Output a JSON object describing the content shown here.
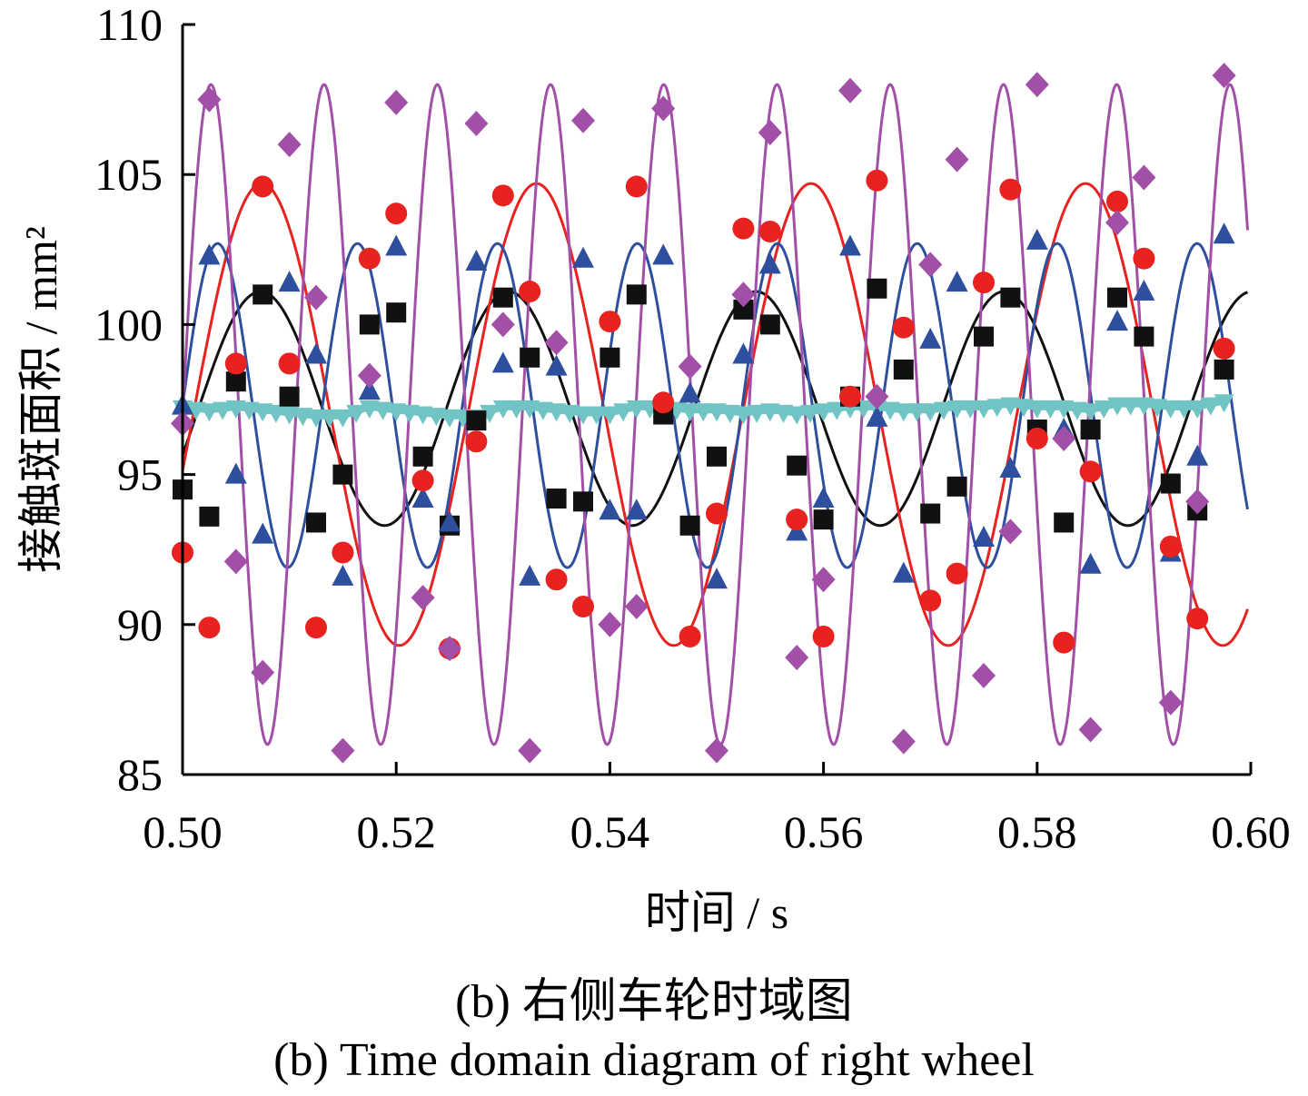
{
  "chart_data": {
    "type": "line",
    "title": "",
    "xlabel": "时间 / s",
    "ylabel": "接触斑面积 / mm²",
    "xlim": [
      0.5,
      0.6
    ],
    "ylim": [
      85,
      110
    ],
    "xticks": [
      "0.50",
      "0.52",
      "0.54",
      "0.56",
      "0.58",
      "0.60"
    ],
    "yticks": [
      "85",
      "90",
      "95",
      "100",
      "105",
      "110"
    ],
    "grid": false,
    "legend": "none",
    "series": [
      {
        "marker": "square",
        "color": "#111111",
        "mean": 97.2,
        "amplitude": 3.9,
        "period": 0.0232,
        "phase": 0.0015,
        "x": [
          0.5,
          0.5025,
          0.505,
          0.5075,
          0.51,
          0.5125,
          0.515,
          0.5175,
          0.52,
          0.5225,
          0.525,
          0.5275,
          0.53,
          0.5325,
          0.535,
          0.5375,
          0.54,
          0.5425,
          0.545,
          0.5475,
          0.55,
          0.5525,
          0.555,
          0.5575,
          0.56,
          0.5625,
          0.565,
          0.5675,
          0.57,
          0.5725,
          0.575,
          0.5775,
          0.58,
          0.5825,
          0.585,
          0.5875,
          0.59,
          0.5925,
          0.595,
          0.5975
        ],
        "y": [
          94.5,
          93.6,
          98.1,
          101.0,
          97.6,
          93.4,
          95.0,
          100.0,
          100.4,
          95.6,
          93.3,
          96.8,
          100.9,
          98.9,
          94.2,
          94.1,
          98.9,
          101.0,
          97.0,
          93.3,
          95.6,
          100.5,
          100.0,
          95.3,
          93.5,
          97.6,
          101.2,
          98.5,
          93.7,
          94.6,
          99.6,
          100.9,
          96.5,
          93.4,
          96.5,
          100.9,
          99.6,
          94.7,
          93.8,
          98.5
        ]
      },
      {
        "marker": "circle",
        "color": "#e8221f",
        "mean": 97.0,
        "amplitude": 7.7,
        "period": 0.0257,
        "phase": 0.001,
        "x": [
          0.5,
          0.5025,
          0.505,
          0.5075,
          0.51,
          0.5125,
          0.515,
          0.5175,
          0.52,
          0.5225,
          0.525,
          0.5275,
          0.53,
          0.5325,
          0.535,
          0.5375,
          0.54,
          0.5425,
          0.545,
          0.5475,
          0.55,
          0.5525,
          0.555,
          0.5575,
          0.56,
          0.5625,
          0.565,
          0.5675,
          0.57,
          0.5725,
          0.575,
          0.5775,
          0.58,
          0.5825,
          0.585,
          0.5875,
          0.59,
          0.5925,
          0.595,
          0.5975
        ],
        "y": [
          92.4,
          89.9,
          98.7,
          104.6,
          98.7,
          89.9,
          92.4,
          102.2,
          103.7,
          94.8,
          89.2,
          96.1,
          104.3,
          101.1,
          91.5,
          90.6,
          100.1,
          104.6,
          97.4,
          89.6,
          93.7,
          103.2,
          103.1,
          93.5,
          89.6,
          97.6,
          104.8,
          99.9,
          90.8,
          91.7,
          101.4,
          104.5,
          96.2,
          89.4,
          95.1,
          104.1,
          102.2,
          92.6,
          90.2,
          99.2
        ]
      },
      {
        "marker": "triangle-up",
        "color": "#2e4f9e",
        "mean": 97.3,
        "amplitude": 5.4,
        "period": 0.0131,
        "phase": 0.0,
        "x": [
          0.5,
          0.5025,
          0.505,
          0.5075,
          0.51,
          0.5125,
          0.515,
          0.5175,
          0.52,
          0.5225,
          0.525,
          0.5275,
          0.53,
          0.5325,
          0.535,
          0.5375,
          0.54,
          0.5425,
          0.545,
          0.5475,
          0.55,
          0.5525,
          0.555,
          0.5575,
          0.56,
          0.5625,
          0.565,
          0.5675,
          0.57,
          0.5725,
          0.575,
          0.5775,
          0.58,
          0.5825,
          0.585,
          0.5875,
          0.59,
          0.5925,
          0.595,
          0.5975
        ],
        "y": [
          97.3,
          102.3,
          95.0,
          93.0,
          101.4,
          99.0,
          91.6,
          97.8,
          102.6,
          94.2,
          93.4,
          102.1,
          98.7,
          91.6,
          98.6,
          102.2,
          93.8,
          93.8,
          102.3,
          97.7,
          91.5,
          99.0,
          102.0,
          93.1,
          94.2,
          102.6,
          96.9,
          91.7,
          99.5,
          101.4,
          92.9,
          95.2,
          102.8,
          96.5,
          92.0,
          100.1,
          101.1,
          92.4,
          95.6,
          103.0
        ]
      },
      {
        "marker": "diamond",
        "color": "#a24fa8",
        "mean": 97.0,
        "amplitude": 11.0,
        "period": 0.0106,
        "phase": 0.0,
        "x": [
          0.5,
          0.5025,
          0.505,
          0.5075,
          0.51,
          0.5125,
          0.515,
          0.5175,
          0.52,
          0.5225,
          0.525,
          0.5275,
          0.53,
          0.5325,
          0.535,
          0.5375,
          0.54,
          0.5425,
          0.545,
          0.5475,
          0.55,
          0.5525,
          0.555,
          0.5575,
          0.56,
          0.5625,
          0.565,
          0.5675,
          0.57,
          0.5725,
          0.575,
          0.5775,
          0.58,
          0.5825,
          0.585,
          0.5875,
          0.59,
          0.5925,
          0.595,
          0.5975
        ],
        "y": [
          96.7,
          107.5,
          92.1,
          88.4,
          106.0,
          100.9,
          85.8,
          98.3,
          107.4,
          90.9,
          89.2,
          106.7,
          100.0,
          85.8,
          99.4,
          106.8,
          90.0,
          90.6,
          107.2,
          98.6,
          85.8,
          101.0,
          106.4,
          88.9,
          91.5,
          107.8,
          97.6,
          86.1,
          102.0,
          105.5,
          88.3,
          93.1,
          108.0,
          96.2,
          86.5,
          103.4,
          104.9,
          87.4,
          94.1,
          108.3
        ]
      },
      {
        "marker": "triangle-down",
        "color": "#70c4c4",
        "mean": 97.1,
        "amplitude": 0.0,
        "period": 0.0,
        "phase": 0.0,
        "x": [
          0.5,
          0.5025,
          0.505,
          0.5075,
          0.51,
          0.5125,
          0.515,
          0.5175,
          0.52,
          0.5225,
          0.525,
          0.5275,
          0.53,
          0.5325,
          0.535,
          0.5375,
          0.54,
          0.5425,
          0.545,
          0.5475,
          0.55,
          0.5525,
          0.555,
          0.5575,
          0.56,
          0.5625,
          0.565,
          0.5675,
          0.57,
          0.5725,
          0.575,
          0.5775,
          0.58,
          0.5825,
          0.585,
          0.5875,
          0.59,
          0.5925,
          0.595,
          0.5975
        ],
        "y": [
          97.2,
          97.1,
          97.2,
          97.1,
          97.0,
          96.9,
          96.9,
          97.2,
          97.1,
          97.0,
          96.9,
          96.9,
          97.2,
          97.2,
          97.1,
          97.0,
          97.0,
          97.2,
          97.2,
          97.1,
          97.1,
          97.0,
          97.1,
          97.0,
          97.1,
          97.2,
          97.2,
          97.1,
          97.1,
          97.2,
          97.2,
          97.3,
          97.2,
          97.2,
          97.1,
          97.3,
          97.3,
          97.2,
          97.2,
          97.4
        ]
      }
    ]
  },
  "captions": {
    "cn": "(b) 右侧车轮时域图",
    "en": "(b) Time domain diagram of right wheel"
  }
}
